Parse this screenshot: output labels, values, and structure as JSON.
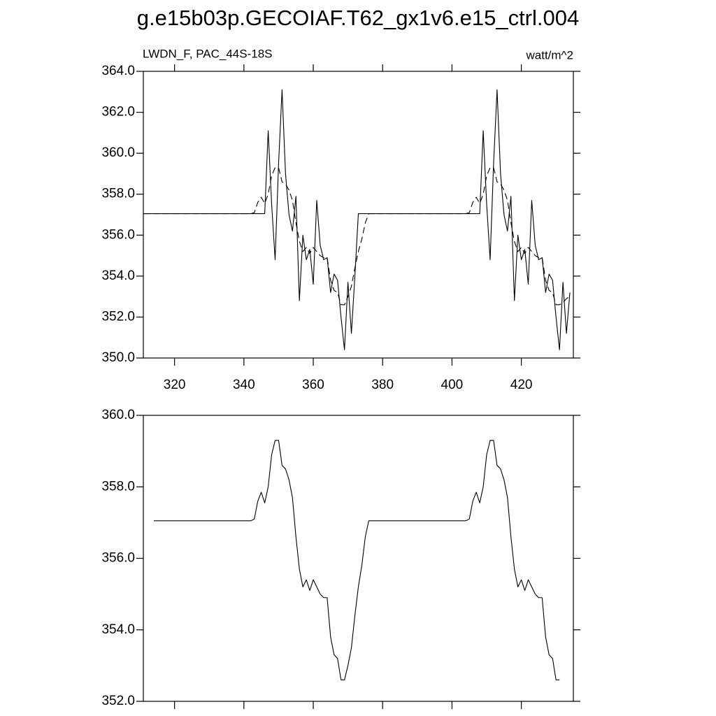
{
  "chart_data": [
    {
      "type": "line",
      "title": "g.e15b03p.GECOIAF.T62_gx1v6.e15_ctrl.004",
      "annotations": [
        "LWDN_F, PAC_44S-18S",
        "watt/m^2"
      ],
      "xlim": [
        311,
        435
      ],
      "xticks": [
        320,
        340,
        360,
        380,
        400,
        420
      ],
      "ylim": [
        350,
        364
      ],
      "yticks": [
        {
          "value": 350,
          "label": "350.0"
        },
        {
          "value": 352,
          "label": "352.0"
        },
        {
          "value": 354,
          "label": "354.0"
        },
        {
          "value": 356,
          "label": "356.0"
        },
        {
          "value": 358,
          "label": "358.0"
        },
        {
          "value": 360,
          "label": "360.0"
        },
        {
          "value": 362,
          "label": "362.0"
        },
        {
          "value": 364,
          "label": "364.0"
        }
      ],
      "x": [
        311,
        312,
        313,
        314,
        315,
        316,
        317,
        318,
        319,
        320,
        321,
        322,
        323,
        324,
        325,
        326,
        327,
        328,
        329,
        330,
        331,
        332,
        333,
        334,
        335,
        336,
        337,
        338,
        339,
        340,
        341,
        342,
        343,
        344,
        345,
        346,
        347,
        348,
        349,
        350,
        351,
        352,
        353,
        354,
        355,
        356,
        357,
        358,
        359,
        360,
        361,
        362,
        363,
        364,
        365,
        366,
        367,
        368,
        369,
        370,
        371,
        372,
        373,
        374,
        375,
        376,
        377,
        378,
        379,
        380,
        381,
        382,
        383,
        384,
        385,
        386,
        387,
        388,
        389,
        390,
        391,
        392,
        393,
        394,
        395,
        396,
        397,
        398,
        399,
        400,
        401,
        402,
        403,
        404,
        405,
        406,
        407,
        408,
        409,
        410,
        411,
        412,
        413,
        414,
        415,
        416,
        417,
        418,
        419,
        420,
        421,
        422,
        423,
        424,
        425,
        426,
        427,
        428,
        429,
        430,
        431,
        432,
        433,
        434
      ],
      "series": [
        {
          "color": "#000000",
          "dash": false,
          "values": [
            357.05,
            357.05,
            357.05,
            357.05,
            357.05,
            357.05,
            357.05,
            357.05,
            357.05,
            357.05,
            357.05,
            357.05,
            357.05,
            357.05,
            357.05,
            357.05,
            357.05,
            357.05,
            357.05,
            357.05,
            357.05,
            357.05,
            357.05,
            357.05,
            357.05,
            357.05,
            357.05,
            357.05,
            357.05,
            357.05,
            357.05,
            357.05,
            357.05,
            357.05,
            357.05,
            357.05,
            361.1,
            357.5,
            354.8,
            359.5,
            363.1,
            359.0,
            357.0,
            356.2,
            357.9,
            352.8,
            356.0,
            354.8,
            355.3,
            353.6,
            357.7,
            355.5,
            354.8,
            354.9,
            353.2,
            354.1,
            353.8,
            352.0,
            350.4,
            353.7,
            351.2,
            354.0,
            357.05,
            357.05,
            357.05,
            357.05,
            357.05,
            357.05,
            357.05,
            357.05,
            357.05,
            357.05,
            357.05,
            357.05,
            357.05,
            357.05,
            357.05,
            357.05,
            357.05,
            357.05,
            357.05,
            357.05,
            357.05,
            357.05,
            357.05,
            357.05,
            357.05,
            357.05,
            357.05,
            357.05,
            357.05,
            357.05,
            357.05,
            357.05,
            357.05,
            357.05,
            357.05,
            357.05,
            361.1,
            357.5,
            354.8,
            359.5,
            363.1,
            359.0,
            357.0,
            356.2,
            357.9,
            352.8,
            356.0,
            354.8,
            355.3,
            353.6,
            357.7,
            355.5,
            354.8,
            354.9,
            353.2,
            354.1,
            353.8,
            352.0,
            350.4,
            353.7,
            351.2,
            353.2
          ]
        },
        {
          "color": "#000000",
          "dash": true,
          "values": [
            357.05,
            357.05,
            357.05,
            357.05,
            357.05,
            357.05,
            357.05,
            357.05,
            357.05,
            357.05,
            357.05,
            357.05,
            357.05,
            357.05,
            357.05,
            357.05,
            357.05,
            357.05,
            357.05,
            357.05,
            357.05,
            357.05,
            357.05,
            357.05,
            357.05,
            357.05,
            357.05,
            357.05,
            357.05,
            357.05,
            357.05,
            357.05,
            357.1,
            357.6,
            357.85,
            357.55,
            358.0,
            358.9,
            359.3,
            359.3,
            358.6,
            358.5,
            358.2,
            357.7,
            356.6,
            355.7,
            355.2,
            355.4,
            355.1,
            355.4,
            355.2,
            355.0,
            354.9,
            354.9,
            353.8,
            353.3,
            353.2,
            352.6,
            352.6,
            353.0,
            353.5,
            354.4,
            355.2,
            355.8,
            356.6,
            357.05,
            357.05,
            357.05,
            357.05,
            357.05,
            357.05,
            357.05,
            357.05,
            357.05,
            357.05,
            357.05,
            357.05,
            357.05,
            357.05,
            357.05,
            357.05,
            357.05,
            357.05,
            357.05,
            357.05,
            357.05,
            357.05,
            357.05,
            357.05,
            357.05,
            357.05,
            357.05,
            357.05,
            357.05,
            357.1,
            357.6,
            357.85,
            357.55,
            358.0,
            358.9,
            359.3,
            359.3,
            358.6,
            358.5,
            358.2,
            357.7,
            356.6,
            355.7,
            355.2,
            355.4,
            355.1,
            355.4,
            355.2,
            355.0,
            354.9,
            354.9,
            353.8,
            353.3,
            353.2,
            352.6,
            352.6,
            352.7,
            352.9,
            353.0
          ]
        }
      ]
    },
    {
      "type": "line",
      "xlim": [
        311,
        435
      ],
      "xticks": [
        320,
        340,
        360,
        380,
        400,
        420
      ],
      "xtick_labels": false,
      "ylim": [
        352,
        360
      ],
      "yticks": [
        {
          "value": 352,
          "label": "352.0"
        },
        {
          "value": 354,
          "label": "354.0"
        },
        {
          "value": 356,
          "label": "356.0"
        },
        {
          "value": 358,
          "label": "358.0"
        },
        {
          "value": 360,
          "label": "360.0"
        }
      ],
      "x": [
        314,
        315,
        316,
        317,
        318,
        319,
        320,
        321,
        322,
        323,
        324,
        325,
        326,
        327,
        328,
        329,
        330,
        331,
        332,
        333,
        334,
        335,
        336,
        337,
        338,
        339,
        340,
        341,
        342,
        343,
        344,
        345,
        346,
        347,
        348,
        349,
        350,
        351,
        352,
        353,
        354,
        355,
        356,
        357,
        358,
        359,
        360,
        361,
        362,
        363,
        364,
        365,
        366,
        367,
        368,
        369,
        370,
        371,
        372,
        373,
        374,
        375,
        376,
        377,
        378,
        379,
        380,
        381,
        382,
        383,
        384,
        385,
        386,
        387,
        388,
        389,
        390,
        391,
        392,
        393,
        394,
        395,
        396,
        397,
        398,
        399,
        400,
        401,
        402,
        403,
        404,
        405,
        406,
        407,
        408,
        409,
        410,
        411,
        412,
        413,
        414,
        415,
        416,
        417,
        418,
        419,
        420,
        421,
        422,
        423,
        424,
        425,
        426,
        427,
        428,
        429,
        430,
        431
      ],
      "series": [
        {
          "color": "#000000",
          "dash": false,
          "values": [
            357.05,
            357.05,
            357.05,
            357.05,
            357.05,
            357.05,
            357.05,
            357.05,
            357.05,
            357.05,
            357.05,
            357.05,
            357.05,
            357.05,
            357.05,
            357.05,
            357.05,
            357.05,
            357.05,
            357.05,
            357.05,
            357.05,
            357.05,
            357.05,
            357.05,
            357.05,
            357.05,
            357.05,
            357.05,
            357.1,
            357.6,
            357.85,
            357.55,
            358.0,
            358.9,
            359.3,
            359.3,
            358.6,
            358.5,
            358.2,
            357.7,
            356.6,
            355.7,
            355.2,
            355.4,
            355.1,
            355.4,
            355.2,
            355.0,
            354.9,
            354.9,
            353.8,
            353.3,
            353.2,
            352.6,
            352.6,
            353.0,
            353.5,
            354.4,
            355.2,
            355.8,
            356.6,
            357.05,
            357.05,
            357.05,
            357.05,
            357.05,
            357.05,
            357.05,
            357.05,
            357.05,
            357.05,
            357.05,
            357.05,
            357.05,
            357.05,
            357.05,
            357.05,
            357.05,
            357.05,
            357.05,
            357.05,
            357.05,
            357.05,
            357.05,
            357.05,
            357.05,
            357.05,
            357.05,
            357.05,
            357.05,
            357.1,
            357.6,
            357.85,
            357.55,
            358.0,
            358.9,
            359.3,
            359.3,
            358.6,
            358.5,
            358.2,
            357.7,
            356.6,
            355.7,
            355.2,
            355.4,
            355.1,
            355.4,
            355.2,
            355.0,
            354.9,
            354.9,
            353.8,
            353.3,
            353.2,
            352.6,
            352.6
          ]
        }
      ]
    }
  ]
}
